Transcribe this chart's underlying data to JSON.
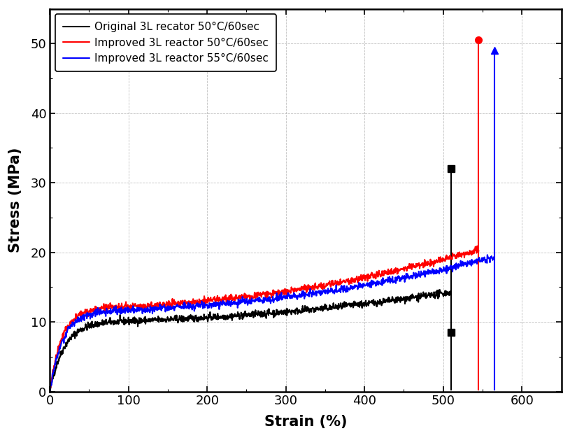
{
  "title": "",
  "xlabel": "Strain (%)",
  "ylabel": "Stress (MPa)",
  "xlim": [
    0,
    650
  ],
  "ylim": [
    0,
    55
  ],
  "xticks": [
    0,
    100,
    200,
    300,
    400,
    500,
    600
  ],
  "yticks": [
    0,
    10,
    20,
    30,
    40,
    50
  ],
  "series": [
    {
      "label": "Original 3L recator 50°C/60sec",
      "color": "black",
      "marker": "s",
      "strain_end": 510,
      "peak_stress": 32.0,
      "drop_mid_stress": 8.5,
      "drop_end_stress": 0.3,
      "seed": 42,
      "a": 10.0,
      "b": 0.055,
      "c": 1.2e-05,
      "n": 2.05
    },
    {
      "label": "Improved 3L reactor 50°C/60sec",
      "color": "red",
      "marker": "o",
      "strain_end": 545,
      "peak_stress": 50.5,
      "drop_mid_stress": null,
      "drop_end_stress": 0.3,
      "seed": 43,
      "a": 12.0,
      "b": 0.065,
      "c": 1.5e-05,
      "n": 2.1
    },
    {
      "label": "Improved 3L reactor 55°C/60sec",
      "color": "blue",
      "marker": "^",
      "strain_end": 565,
      "peak_stress": 49.0,
      "drop_mid_stress": null,
      "drop_end_stress": 0.3,
      "seed": 44,
      "a": 11.5,
      "b": 0.062,
      "c": 1.3e-05,
      "n": 2.1
    }
  ],
  "background_color": "#ffffff",
  "grid_color": "#b0b0b0",
  "figure_width": 8.15,
  "figure_height": 6.26,
  "dpi": 100,
  "noise_amplitude": 0.25,
  "linewidth": 1.5,
  "markersize": 7
}
